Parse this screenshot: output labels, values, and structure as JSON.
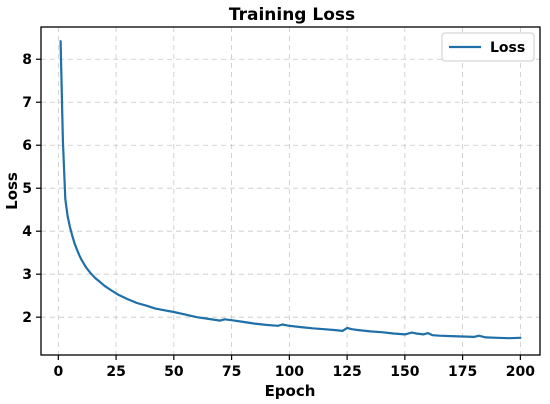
{
  "chart_data": {
    "type": "line",
    "title": "Training Loss",
    "xlabel": "Epoch",
    "ylabel": "Loss",
    "xlim": [
      -7.5,
      208.5
    ],
    "ylim": [
      1.12,
      8.75
    ],
    "xticks": [
      0,
      25,
      50,
      75,
      100,
      125,
      150,
      175,
      200
    ],
    "yticks": [
      2,
      3,
      4,
      5,
      6,
      7,
      8
    ],
    "grid": true,
    "legend_position": "top-right",
    "series": [
      {
        "name": "Loss",
        "color": "#1f6fa8",
        "x": [
          1,
          2,
          3,
          4,
          5,
          6,
          7,
          8,
          9,
          10,
          12,
          14,
          16,
          18,
          20,
          23,
          26,
          30,
          34,
          38,
          42,
          46,
          50,
          55,
          60,
          65,
          70,
          72,
          75,
          80,
          85,
          90,
          95,
          97,
          100,
          105,
          110,
          115,
          120,
          123,
          125,
          127,
          130,
          135,
          140,
          145,
          150,
          153,
          155,
          158,
          160,
          162,
          165,
          170,
          175,
          180,
          182,
          185,
          190,
          195,
          200
        ],
        "y": [
          8.42,
          6.1,
          4.75,
          4.35,
          4.1,
          3.9,
          3.72,
          3.58,
          3.45,
          3.34,
          3.16,
          3.02,
          2.91,
          2.82,
          2.73,
          2.62,
          2.52,
          2.42,
          2.33,
          2.27,
          2.2,
          2.16,
          2.12,
          2.06,
          2.0,
          1.96,
          1.92,
          1.95,
          1.93,
          1.89,
          1.85,
          1.82,
          1.8,
          1.83,
          1.8,
          1.77,
          1.74,
          1.72,
          1.7,
          1.68,
          1.75,
          1.72,
          1.7,
          1.67,
          1.65,
          1.62,
          1.6,
          1.64,
          1.62,
          1.6,
          1.63,
          1.58,
          1.57,
          1.56,
          1.55,
          1.54,
          1.57,
          1.53,
          1.52,
          1.51,
          1.52
        ]
      }
    ]
  }
}
